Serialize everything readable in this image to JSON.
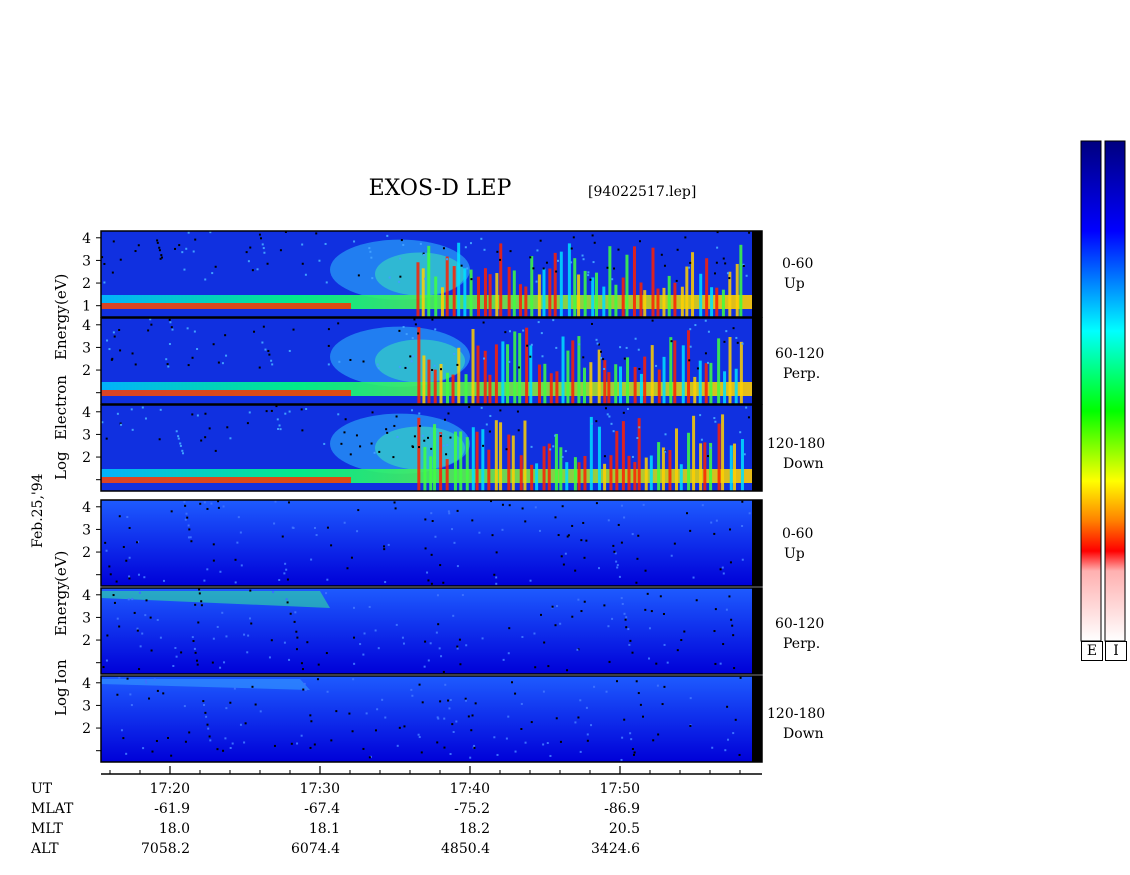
{
  "header": {
    "title": "EXOS-D LEP",
    "file": "[94022517.lep]"
  },
  "date": "Feb.25,'94",
  "electron_panels": {
    "ylabel_words": [
      "Log",
      "Electron",
      "Energy",
      "(eV)"
    ],
    "angles": [
      {
        "range": "0-60",
        "dir": "Up"
      },
      {
        "range": "60-120",
        "dir": "Perp."
      },
      {
        "range": "120-180",
        "dir": "Down"
      }
    ]
  },
  "ion_panels": {
    "ylabel_words": [
      "Log",
      "Ion",
      "Energy",
      "(eV)"
    ],
    "angles": [
      {
        "range": "0-60",
        "dir": "Up"
      },
      {
        "range": "60-120",
        "dir": "Perp."
      },
      {
        "range": "120-180",
        "dir": "Down"
      }
    ]
  },
  "colorbar": {
    "labels": [
      "E",
      "I"
    ],
    "colors": [
      "#00007f",
      "#0000ff",
      "#00ffff",
      "#00ff00",
      "#ffff00",
      "#ff8000",
      "#ff0000",
      "#ffd0d0",
      "#ffffff"
    ]
  },
  "table": {
    "rows": [
      {
        "label": "UT",
        "values": [
          "17:20",
          "17:30",
          "17:40",
          "17:50"
        ]
      },
      {
        "label": "MLAT",
        "values": [
          "-61.9",
          "-67.4",
          "-75.2",
          "-86.9"
        ]
      },
      {
        "label": "MLT",
        "values": [
          "18.0",
          "18.1",
          "18.2",
          "20.5"
        ]
      },
      {
        "label": "ALT",
        "values": [
          "7058.2",
          "6074.4",
          "4850.4",
          "3424.6"
        ]
      }
    ]
  },
  "chart_data": {
    "type": "heatmap",
    "title": "EXOS-D LEP",
    "xlabel": "UT",
    "x_ticks": [
      "17:20",
      "17:30",
      "17:40",
      "17:50"
    ],
    "y_ticks": [
      "1",
      "2",
      "3",
      "4"
    ],
    "panels": [
      "Electron 0-60 Up",
      "Electron 60-120 Perp.",
      "Electron 120-180 Down",
      "Ion 0-60 Up",
      "Ion 60-120 Perp.",
      "Ion 120-180 Down"
    ]
  }
}
